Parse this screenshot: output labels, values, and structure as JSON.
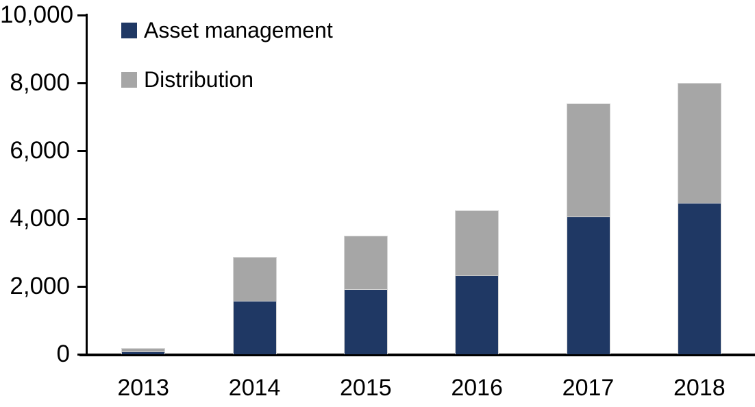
{
  "chart_data": {
    "type": "bar",
    "stacked": true,
    "title": "",
    "xlabel": "",
    "ylabel": "",
    "categories": [
      "2013",
      "2014",
      "2015",
      "2016",
      "2017",
      "2018"
    ],
    "series": [
      {
        "name": "Asset management",
        "color": "#1F3864",
        "values": [
          70,
          1550,
          1900,
          2300,
          4050,
          4440
        ]
      },
      {
        "name": "Distribution",
        "color": "#A6A6A6",
        "values": [
          110,
          1310,
          1600,
          1950,
          3350,
          3560
        ]
      }
    ],
    "totals": [
      180,
      2860,
      3500,
      4250,
      7400,
      8000
    ],
    "ylim": [
      0,
      10000
    ],
    "ytick_interval": 2000,
    "yticks": [
      {
        "value": 0,
        "label": "0"
      },
      {
        "value": 2000,
        "label": "2,000"
      },
      {
        "value": 4000,
        "label": "4,000"
      },
      {
        "value": 6000,
        "label": "6,000"
      },
      {
        "value": 8000,
        "label": "8,000"
      },
      {
        "value": 10000,
        "label": "10,000"
      }
    ],
    "grid": false,
    "legend": {
      "position": "top-left-inside"
    },
    "axis_color": "#000000",
    "bar_edge_color": "#D6D6D6",
    "background": "#FFFFFF",
    "text_color": "#000000"
  }
}
